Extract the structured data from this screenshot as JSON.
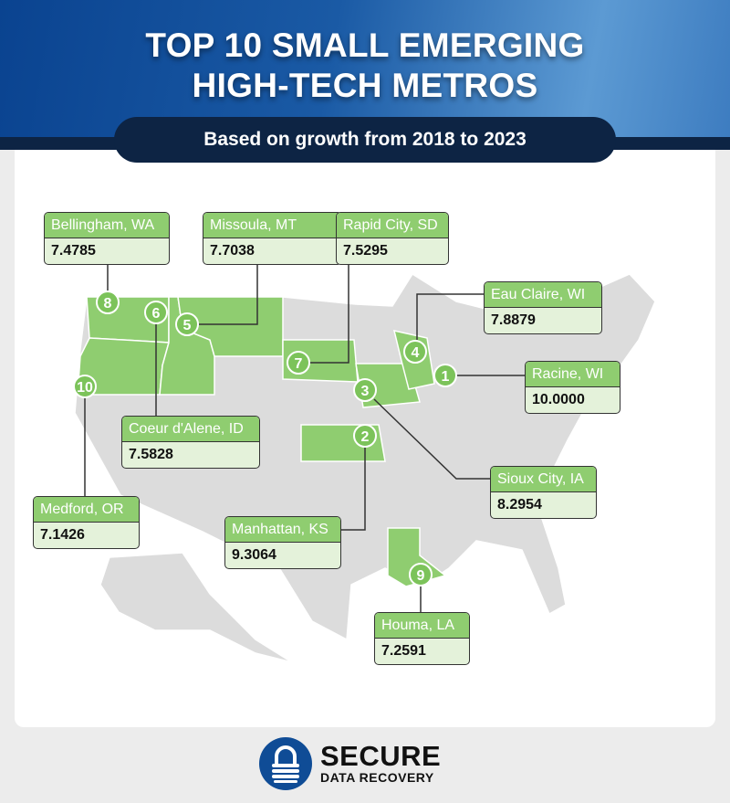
{
  "header": {
    "title_line1": "TOP 10 SMALL EMERGING",
    "title_line2": "HIGH-TECH METROS",
    "subtitle": "Based on growth from 2018 to 2023"
  },
  "colors": {
    "highlight_state": "#8fcd70",
    "other_state": "#dcdcdc",
    "header_blue": "#0a4390",
    "navy": "#0d2444"
  },
  "metros": [
    {
      "rank": "1",
      "name": "Racine, WI",
      "score": "10.0000"
    },
    {
      "rank": "2",
      "name": "Manhattan, KS",
      "score": "9.3064"
    },
    {
      "rank": "3",
      "name": "Sioux City, IA",
      "score": "8.2954"
    },
    {
      "rank": "4",
      "name": "Eau Claire, WI",
      "score": "7.8879"
    },
    {
      "rank": "5",
      "name": "Missoula, MT",
      "score": "7.7038"
    },
    {
      "rank": "6",
      "name": "Coeur d'Alene, ID",
      "score": "7.5828"
    },
    {
      "rank": "7",
      "name": "Rapid City, SD",
      "score": "7.5295"
    },
    {
      "rank": "8",
      "name": "Bellingham, WA",
      "score": "7.4785"
    },
    {
      "rank": "9",
      "name": "Houma, LA",
      "score": "7.2591"
    },
    {
      "rank": "10",
      "name": "Medford, OR",
      "score": "7.1426"
    }
  ],
  "logo": {
    "line1": "SECURE",
    "line2": "DATA RECOVERY",
    "icon": "padlock-icon"
  }
}
